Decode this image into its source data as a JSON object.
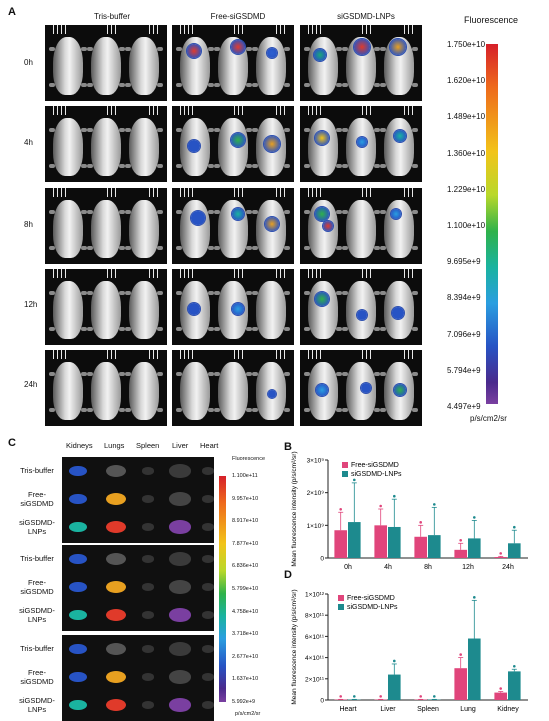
{
  "panelA": {
    "label": "A",
    "columns": [
      "Tris-buffer",
      "Free-siGSDMD",
      "siGSDMD-LNPs"
    ],
    "rows": [
      "0h",
      "4h",
      "8h",
      "12h",
      "24h"
    ],
    "colorbar_title": "Fluorescence",
    "colorbar_ticks": [
      "1.750e+10",
      "1.620e+10",
      "1.489e+10",
      "1.360e+10",
      "1.229e+10",
      "1.100e+10",
      "9.695e+9",
      "8.394e+9",
      "7.096e+9",
      "5.794e+9",
      "4.497e+9"
    ],
    "colorbar_unit": "p/s/cm2/sr"
  },
  "panelC": {
    "label": "C",
    "columns": [
      "Kidneys",
      "Lungs",
      "Spleen",
      "Liver",
      "Heart"
    ],
    "groups": [
      [
        "Tris-buffer",
        "Free-\nsiGSDMD",
        "siGSDMD-\nLNPs"
      ],
      [
        "Tris-buffer",
        "Free-\nsiGSDMD",
        "siGSDMD-\nLNPs"
      ],
      [
        "Tris-buffer",
        "Free-\nsiGSDMD",
        "siGSDMD-\nLNPs"
      ]
    ],
    "colorbar_title": "Fluorescence",
    "colorbar_ticks": [
      "1.100e+11",
      "9.957e+10",
      "8.917e+10",
      "7.877e+10",
      "6.836e+10",
      "5.799e+10",
      "4.758e+10",
      "3.718e+10",
      "2.677e+10",
      "1.637e+10",
      "5.992e+9"
    ],
    "colorbar_unit": "p/s/cm2/sr"
  },
  "chart_data": [
    {
      "panel": "B",
      "type": "bar",
      "categories": [
        "0h",
        "4h",
        "8h",
        "12h",
        "24h"
      ],
      "ylabel": "Mean fluorescence intensity (p/s/cm²/sr)",
      "yticks": [
        "0",
        "1×10⁹",
        "2×10⁹",
        "3×10⁹"
      ],
      "ylim": [
        0,
        3000000000.0
      ],
      "legend": "top-right",
      "series": [
        {
          "name": "Free-siGSDMD",
          "color": "#e0457b",
          "values": [
            850000000.0,
            1000000000.0,
            650000000.0,
            250000000.0,
            30000000.0
          ],
          "errors": [
            550000000.0,
            500000000.0,
            350000000.0,
            200000000.0,
            20000000.0
          ]
        },
        {
          "name": "siGSDMD-LNPs",
          "color": "#1d8a8e",
          "values": [
            1100000000.0,
            950000000.0,
            700000000.0,
            600000000.0,
            450000000.0
          ],
          "errors": [
            1200000000.0,
            850000000.0,
            850000000.0,
            550000000.0,
            400000000.0
          ]
        }
      ]
    },
    {
      "panel": "D",
      "type": "bar",
      "categories": [
        "Heart",
        "Liver",
        "Spleen",
        "Lung",
        "Kidney"
      ],
      "ylabel": "Mean fluorescence intensity (p/s/cm²/sr)",
      "yticks": [
        "0",
        "2×10¹¹",
        "4×10¹¹",
        "6×10¹¹",
        "8×10¹¹",
        "1×10¹²"
      ],
      "ylim": [
        0,
        1000000000000.0
      ],
      "legend": "top-left",
      "series": [
        {
          "name": "Free-siGSDMD",
          "color": "#e0457b",
          "values": [
            4000000000.0,
            4000000000.0,
            4000000000.0,
            300000000000.0,
            70000000000.0
          ],
          "errors": [
            2000000000.0,
            2000000000.0,
            2000000000.0,
            100000000000.0,
            10000000000.0
          ]
        },
        {
          "name": "siGSDMD-LNPs",
          "color": "#1d8a8e",
          "values": [
            4000000000.0,
            240000000000.0,
            4000000000.0,
            580000000000.0,
            270000000000.0
          ],
          "errors": [
            2000000000.0,
            100000000000.0,
            2000000000.0,
            360000000000.0,
            20000000000.0
          ]
        }
      ]
    }
  ]
}
